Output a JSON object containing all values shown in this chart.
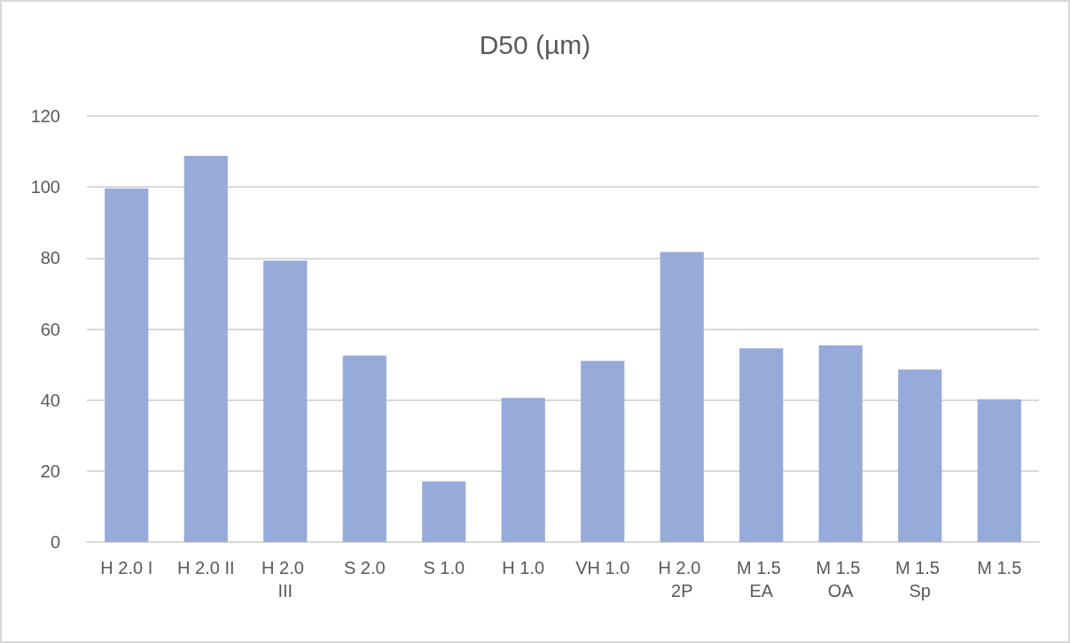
{
  "chart_data": {
    "type": "bar",
    "title": "D50 (µm)",
    "categories": [
      "H 2.0 I",
      "H 2.0 II",
      "H 2.0 III",
      "S 2.0",
      "S 1.0",
      "H 1.0",
      "VH 1.0",
      "H 2.0 2P",
      "M 1.5 EA",
      "M 1.5 OA",
      "M 1.5 Sp",
      "M 1.5"
    ],
    "values": [
      99.6,
      108.8,
      79.3,
      52.5,
      17.1,
      40.6,
      51.0,
      81.7,
      54.6,
      55.4,
      48.6,
      40.2
    ],
    "color": "#97abda",
    "ylim": [
      0,
      120
    ],
    "yticks": [
      0,
      20,
      40,
      60,
      80,
      100,
      120
    ],
    "grid": "y"
  }
}
